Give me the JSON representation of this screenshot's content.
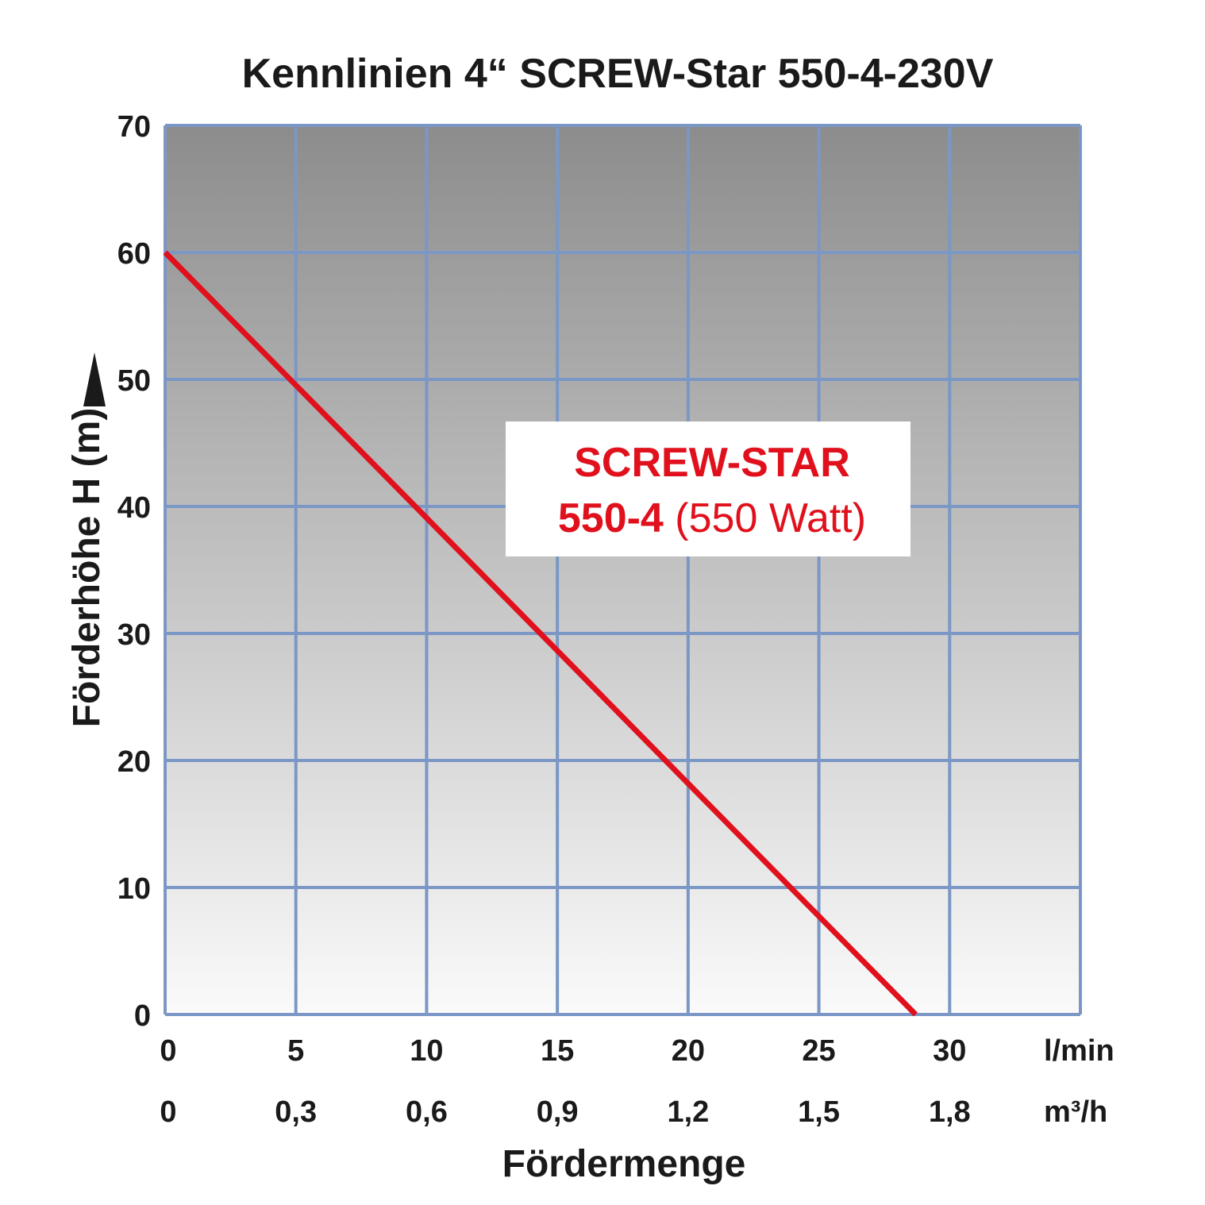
{
  "chart_data": {
    "type": "line",
    "title": "Kennlinien 4“ SCREW-Star 550-4-230V",
    "xlabel": "Fördermenge",
    "ylabel": "Förderhöhe H (m)",
    "xlim": [
      0,
      35
    ],
    "ylim": [
      0,
      70
    ],
    "grid": true,
    "x_ticks": [
      "0",
      "5",
      "10",
      "15",
      "20",
      "25",
      "30"
    ],
    "x_ticks_secondary": [
      "0",
      "0,3",
      "0,6",
      "0,9",
      "1,2",
      "1,5",
      "1,8"
    ],
    "x_unit": "l/min",
    "x_unit_secondary": "m³/h",
    "y_ticks": [
      "0",
      "10",
      "20",
      "30",
      "40",
      "50",
      "60",
      "70"
    ],
    "series": [
      {
        "name": "SCREW-STAR 550-4 (550 Watt)",
        "x": [
          0,
          28.7
        ],
        "y": [
          60,
          0
        ]
      }
    ],
    "annotation": {
      "line1": "SCREW-STAR",
      "line2_bold": "550-4",
      "line2_rest": " (550 Watt)"
    },
    "colors": {
      "line": "#e0101c",
      "grid": "#7b97c6",
      "background_top": "#8c8c8c",
      "background_bottom": "#fafafa"
    }
  }
}
